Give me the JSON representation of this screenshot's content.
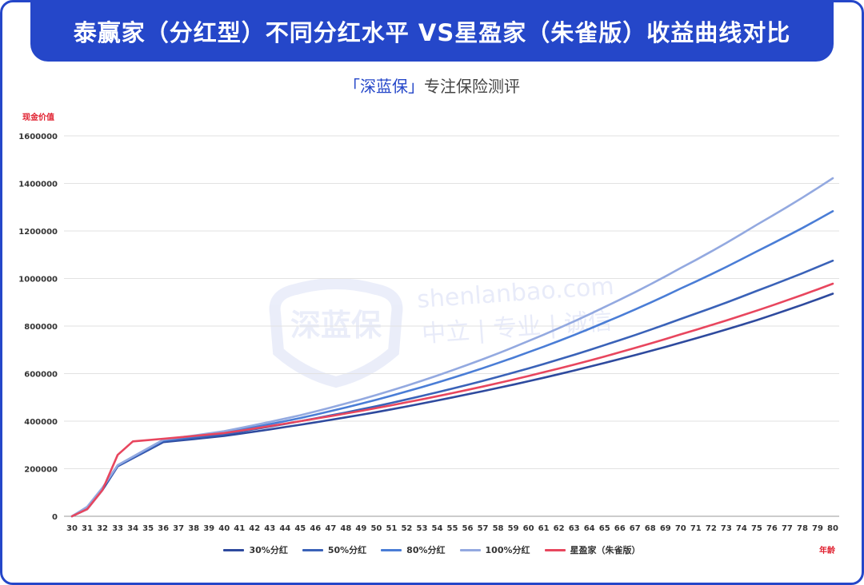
{
  "header": {
    "title": "泰赢家（分红型）不同分红水平 VS星盈家（朱雀版）收益曲线对比",
    "subtitle_brand": "「深蓝保」",
    "subtitle_text": "专注保险测评"
  },
  "watermark": {
    "logo_text": "深蓝保",
    "domain": "shenlanbao.com",
    "slogan": "中立 | 专业 | 诚信"
  },
  "chart_data": {
    "type": "line",
    "ylabel": "现金价值",
    "xlabel": "年龄",
    "ylim": [
      0,
      1600000
    ],
    "yticks": [
      0,
      200000,
      400000,
      600000,
      800000,
      1000000,
      1200000,
      1400000,
      1600000
    ],
    "grid": true,
    "legend_position": "bottom",
    "x": [
      30,
      31,
      32,
      33,
      34,
      35,
      36,
      37,
      38,
      39,
      40,
      41,
      42,
      43,
      44,
      45,
      46,
      47,
      48,
      49,
      50,
      51,
      52,
      53,
      54,
      55,
      56,
      57,
      58,
      59,
      60,
      61,
      62,
      63,
      64,
      65,
      66,
      67,
      68,
      69,
      70,
      71,
      72,
      73,
      74,
      75,
      76,
      77,
      78,
      79,
      80
    ],
    "series": [
      {
        "name": "30%分红",
        "color": "#2e4a9e",
        "anchors": [
          [
            30,
            0
          ],
          [
            31,
            30000
          ],
          [
            32,
            110000
          ],
          [
            33,
            210000
          ],
          [
            36,
            312000
          ],
          [
            40,
            338000
          ],
          [
            45,
            385000
          ],
          [
            50,
            438000
          ],
          [
            55,
            500000
          ],
          [
            60,
            568000
          ],
          [
            65,
            645000
          ],
          [
            70,
            730000
          ],
          [
            75,
            825000
          ],
          [
            80,
            936000
          ]
        ]
      },
      {
        "name": "50%分红",
        "color": "#3a62b8",
        "anchors": [
          [
            30,
            0
          ],
          [
            31,
            35000
          ],
          [
            32,
            115000
          ],
          [
            33,
            212000
          ],
          [
            36,
            316000
          ],
          [
            40,
            345000
          ],
          [
            45,
            400000
          ],
          [
            50,
            463000
          ],
          [
            55,
            537000
          ],
          [
            60,
            622000
          ],
          [
            65,
            720000
          ],
          [
            70,
            830000
          ],
          [
            75,
            948000
          ],
          [
            80,
            1075000
          ]
        ]
      },
      {
        "name": "80%分红",
        "color": "#4a7dd6",
        "anchors": [
          [
            30,
            0
          ],
          [
            31,
            38000
          ],
          [
            32,
            118000
          ],
          [
            33,
            214000
          ],
          [
            36,
            320000
          ],
          [
            40,
            352000
          ],
          [
            45,
            413000
          ],
          [
            50,
            490000
          ],
          [
            55,
            582000
          ],
          [
            60,
            690000
          ],
          [
            65,
            815000
          ],
          [
            70,
            958000
          ],
          [
            75,
            1114000
          ],
          [
            80,
            1283000
          ]
        ]
      },
      {
        "name": "100%分红",
        "color": "#93a9e0",
        "anchors": [
          [
            30,
            0
          ],
          [
            31,
            40000
          ],
          [
            32,
            120000
          ],
          [
            33,
            215000
          ],
          [
            36,
            322000
          ],
          [
            40,
            358000
          ],
          [
            45,
            425000
          ],
          [
            50,
            510000
          ],
          [
            55,
            614000
          ],
          [
            60,
            737000
          ],
          [
            65,
            880000
          ],
          [
            70,
            1044000
          ],
          [
            75,
            1226000
          ],
          [
            80,
            1422000
          ]
        ]
      },
      {
        "name": "星盈家（朱雀版）",
        "color": "#e8465e",
        "anchors": [
          [
            30,
            0
          ],
          [
            31,
            30000
          ],
          [
            32,
            110000
          ],
          [
            33,
            258000
          ],
          [
            34,
            315000
          ],
          [
            36,
            326000
          ],
          [
            40,
            350000
          ],
          [
            45,
            400000
          ],
          [
            50,
            455000
          ],
          [
            55,
            518000
          ],
          [
            60,
            590000
          ],
          [
            65,
            672000
          ],
          [
            70,
            765000
          ],
          [
            75,
            865000
          ],
          [
            80,
            978000
          ]
        ]
      }
    ]
  }
}
